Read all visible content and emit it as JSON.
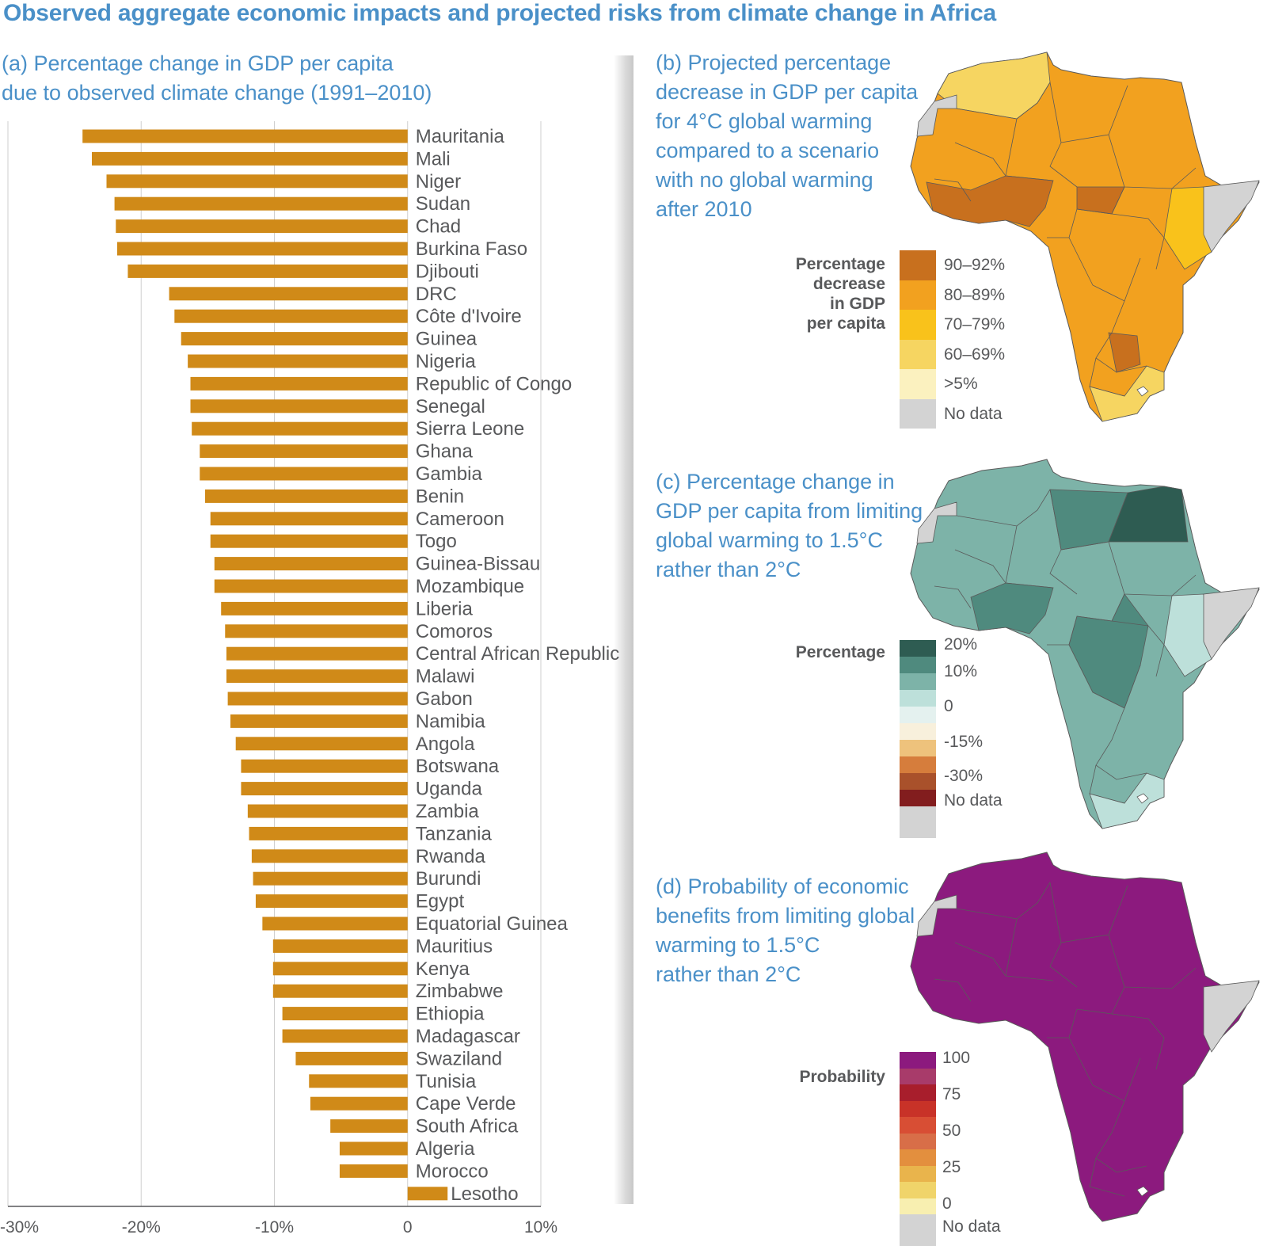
{
  "title": "Observed aggregate economic impacts and projected risks from climate change in Africa",
  "panel_a": {
    "title": "(a) Percentage change in GDP per capita\ndue to observed climate change (1991–2010)"
  },
  "panel_b": {
    "title": "(b) Projected percentage\ndecrease in GDP per capita\nfor 4°C global warming\ncompared to a scenario\nwith no global warming\nafter 2010",
    "legend_title": "Percentage\ndecrease\nin GDP\nper capita",
    "legend": [
      {
        "label": "90–92%",
        "color": "#c8701e"
      },
      {
        "label": "80–89%",
        "color": "#f2a11f"
      },
      {
        "label": "70–79%",
        "color": "#f9c21b"
      },
      {
        "label": "60–69%",
        "color": "#f6d561"
      },
      {
        "label": ">5%",
        "color": "#fbf1bf"
      },
      {
        "label": "No data",
        "color": "#d3d3d3"
      }
    ]
  },
  "panel_c": {
    "title": "(c) Percentage change in\nGDP per capita from limiting\nglobal warming to 1.5°C\nrather than 2°C",
    "legend_title": "Percentage",
    "legend_colors": [
      "#2e5c52",
      "#4f8a7e",
      "#7db3a8",
      "#bde0da",
      "#e4f1ef",
      "#f8f0dc",
      "#eec27c",
      "#d67d3c",
      "#a9512b",
      "#821d1e",
      "#d3d3d3"
    ],
    "legend_labels": [
      "20%",
      "10%",
      "0",
      "-15%",
      "-30%",
      "No data"
    ]
  },
  "panel_d": {
    "title": "(d) Probability of economic\nbenefits from limiting global\nwarming to 1.5°C\nrather than 2°C",
    "legend_title": "Probability",
    "legend_colors": [
      "#8c1a7e",
      "#a83b6a",
      "#a81e2c",
      "#c83228",
      "#d84e34",
      "#d86e48",
      "#e38f3e",
      "#e9b44c",
      "#f0d46a",
      "#f8efb0",
      "#d3d3d3"
    ],
    "legend_labels": [
      "100",
      "75",
      "50",
      "25",
      "0",
      "No data"
    ]
  },
  "colors": {
    "bar": "#d08a18",
    "title_blue": "#4a90c8",
    "map_b_base": "#f2a11f",
    "map_c_base": "#7db3a8",
    "map_d_base": "#8c1a7e",
    "no_data": "#d3d3d3"
  },
  "chart_data": {
    "type": "bar",
    "orientation": "horizontal",
    "xlim": [
      -30,
      10
    ],
    "xticks": [
      "-30%",
      "-20%",
      "-10%",
      "0",
      "10%"
    ],
    "xtick_values": [
      -30,
      -20,
      -10,
      0,
      10
    ],
    "grid": true,
    "categories": [
      "Mauritania",
      "Mali",
      "Niger",
      "Sudan",
      "Chad",
      "Burkina Faso",
      "Djibouti",
      "DRC",
      "Côte d'Ivoire",
      "Guinea",
      "Nigeria",
      "Republic of Congo",
      "Senegal",
      "Sierra Leone",
      "Ghana",
      "Gambia",
      "Benin",
      "Cameroon",
      "Togo",
      "Guinea-Bissau",
      "Mozambique",
      "Liberia",
      "Comoros",
      "Central African Republic",
      "Malawi",
      "Gabon",
      "Namibia",
      "Angola",
      "Botswana",
      "Uganda",
      "Zambia",
      "Tanzania",
      "Rwanda",
      "Burundi",
      "Egypt",
      "Equatorial Guinea",
      "Mauritius",
      "Kenya",
      "Zimbabwe",
      "Ethiopia",
      "Madagascar",
      "Swaziland",
      "Tunisia",
      "Cape Verde",
      "South Africa",
      "Algeria",
      "Morocco",
      "Lesotho"
    ],
    "values": [
      -24.4,
      -23.7,
      -22.6,
      -22.0,
      -21.9,
      -21.8,
      -21.0,
      -17.9,
      -17.5,
      -17.0,
      -16.5,
      -16.3,
      -16.3,
      -16.2,
      -15.6,
      -15.6,
      -15.2,
      -14.8,
      -14.8,
      -14.5,
      -14.5,
      -14.0,
      -13.7,
      -13.6,
      -13.6,
      -13.5,
      -13.3,
      -12.9,
      -12.5,
      -12.5,
      -12.0,
      -11.9,
      -11.7,
      -11.6,
      -11.4,
      -10.9,
      -10.1,
      -10.1,
      -10.1,
      -9.4,
      -9.4,
      -8.4,
      -7.4,
      -7.3,
      -5.8,
      -5.1,
      -5.1,
      3.0
    ]
  }
}
